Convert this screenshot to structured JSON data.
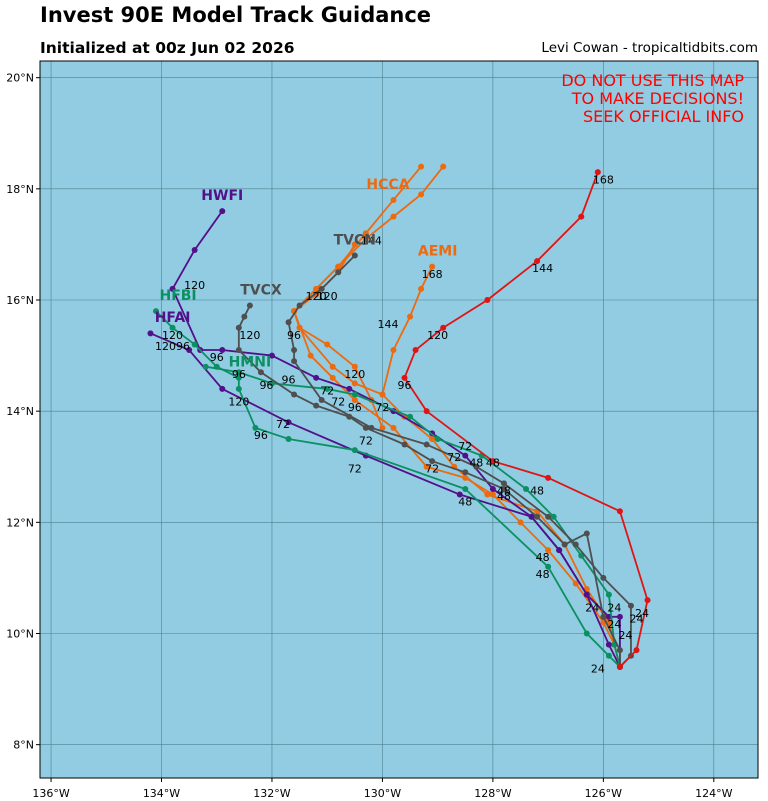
{
  "header": {
    "title": "Invest 90E Model Track Guidance",
    "subtitle": "Initialized at 00z Jun 02 2026",
    "credit": "Levi Cowan - tropicaltidbits.com"
  },
  "warning": {
    "lines": [
      "DO NOT USE THIS MAP",
      "TO MAKE DECISIONS!",
      "SEEK OFFICIAL INFO"
    ]
  },
  "colors": {
    "ocean": "#92cce2",
    "grid": "#4d7f8f",
    "AEMI": "#ec6a10",
    "HCCA": "#ec6a10",
    "HWFI": "#52108a",
    "HFAI": "#52108a",
    "HFBI": "#0c9063",
    "HMNI": "#0c9063",
    "TVCN": "#4f4f4f",
    "TVCX": "#4f4f4f",
    "CLIPER": "#e01414",
    "warning": "#ff0000"
  },
  "chart_data": {
    "type": "line",
    "xlabel": "",
    "ylabel": "",
    "xlim": [
      -136.2,
      -123.2
    ],
    "ylim": [
      7.4,
      20.3
    ],
    "x_ticks": [
      -136,
      -134,
      -132,
      -130,
      -128,
      -126,
      -124
    ],
    "x_tick_labels": [
      "136°W",
      "134°W",
      "132°W",
      "130°W",
      "128°W",
      "126°W",
      "124°W"
    ],
    "y_ticks": [
      8,
      10,
      12,
      14,
      16,
      18,
      20
    ],
    "y_tick_labels": [
      "8°N",
      "10°N",
      "12°N",
      "14°N",
      "16°N",
      "18°N",
      "20°N"
    ],
    "grid": true,
    "series": [
      {
        "name": "AEMI",
        "color_key": "AEMI",
        "lon": [
          -125.7,
          -125.8,
          -125.9,
          -126.3,
          -126.7,
          -127.2,
          -128.1,
          -128.7,
          -129.1,
          -129.6,
          -130.0,
          -130.5,
          -130.9,
          -131.5,
          -131.6,
          -131.2,
          -130.8,
          -130.5
        ],
        "lat": [
          9.4,
          9.8,
          10.2,
          10.8,
          11.6,
          12.2,
          12.5,
          13.0,
          13.5,
          13.9,
          14.3,
          14.5,
          14.8,
          15.5,
          15.8,
          16.1,
          16.5,
          17.0
        ],
        "labels": [
          {
            "text": "24",
            "i": 2
          },
          {
            "text": "48",
            "i": 6
          }
        ]
      },
      {
        "name": "AEMI_upper",
        "color_key": "AEMI",
        "lon": [
          -130.0,
          -130.2,
          -130.5,
          -131.0,
          -131.5,
          -131.6,
          -131.2,
          -130.8,
          -130.3,
          -129.8,
          -129.3,
          -128.9
        ],
        "lat": [
          13.7,
          14.2,
          14.8,
          15.2,
          15.5,
          15.8,
          16.2,
          16.6,
          17.1,
          17.5,
          17.9,
          18.4
        ],
        "labels": []
      },
      {
        "name": "HCCA",
        "color_key": "HCCA",
        "lon": [
          -125.7,
          -125.8,
          -126.0,
          -126.5,
          -127.0,
          -127.5,
          -128.0,
          -128.5,
          -129.2,
          -129.8,
          -130.5,
          -130.9,
          -131.3,
          -131.6,
          -131.2,
          -130.8,
          -130.3,
          -129.8,
          -129.3
        ],
        "lat": [
          9.4,
          9.8,
          10.2,
          10.9,
          11.5,
          12.0,
          12.5,
          12.8,
          13.0,
          13.7,
          14.2,
          14.6,
          15.0,
          15.8,
          16.2,
          16.6,
          17.2,
          17.8,
          18.4
        ],
        "labels": []
      },
      {
        "name": "AEMI_east",
        "color_key": "AEMI",
        "lon": [
          -130.0,
          -129.8,
          -129.5,
          -129.3,
          -129.1
        ],
        "lat": [
          14.3,
          15.1,
          15.7,
          16.2,
          16.6
        ],
        "labels": [
          {
            "text": "144",
            "i": 1
          },
          {
            "text": "168",
            "i": 4
          }
        ]
      },
      {
        "name": "HWFI",
        "color_key": "HWFI",
        "lon": [
          -125.7,
          -125.9,
          -126.3,
          -126.8,
          -127.3,
          -128.0,
          -128.5,
          -129.1,
          -129.8,
          -130.6,
          -131.2,
          -132.0,
          -132.9,
          -133.3,
          -133.8,
          -133.4,
          -132.9
        ],
        "lat": [
          9.4,
          9.8,
          10.7,
          11.5,
          12.1,
          12.6,
          13.2,
          13.6,
          14.0,
          14.4,
          14.6,
          15.0,
          15.1,
          15.1,
          16.2,
          16.9,
          17.6
        ],
        "labels": []
      },
      {
        "name": "HFAI",
        "color_key": "HFAI",
        "lon": [
          -125.7,
          -125.7,
          -125.9,
          -126.3,
          -126.8,
          -127.3,
          -128.6,
          -130.3,
          -131.7,
          -132.9,
          -133.5,
          -134.2
        ],
        "lat": [
          9.4,
          10.3,
          10.3,
          10.7,
          11.5,
          12.1,
          12.5,
          13.2,
          13.8,
          14.4,
          15.1,
          15.4
        ],
        "labels": []
      },
      {
        "name": "HFBI",
        "color_key": "HFBI",
        "lon": [
          -125.7,
          -125.9,
          -126.3,
          -127.0,
          -128.5,
          -130.5,
          -131.7,
          -132.3,
          -132.6,
          -132.6,
          -133.0,
          -133.4,
          -133.8,
          -134.1
        ],
        "lat": [
          9.4,
          9.6,
          10.0,
          11.2,
          12.6,
          13.3,
          13.5,
          13.7,
          14.4,
          14.6,
          14.8,
          15.2,
          15.5,
          15.8
        ],
        "labels": []
      },
      {
        "name": "HMNI",
        "color_key": "HMNI",
        "lon": [
          -125.7,
          -125.8,
          -125.9,
          -126.4,
          -126.9,
          -127.4,
          -128.2,
          -129.0,
          -129.5,
          -130.5,
          -131.0,
          -132.0,
          -132.6,
          -133.2
        ],
        "lat": [
          9.4,
          9.8,
          10.7,
          11.4,
          12.1,
          12.6,
          13.2,
          13.5,
          13.9,
          14.3,
          14.4,
          14.5,
          14.7,
          14.8
        ],
        "labels": []
      },
      {
        "name": "TVCN",
        "color_key": "TVCN",
        "lon": [
          -125.7,
          -125.5,
          -125.5,
          -126.0,
          -126.5,
          -127.0,
          -127.8,
          -128.3,
          -129.2,
          -130.2,
          -131.1,
          -131.6,
          -131.6,
          -131.7,
          -131.5,
          -131.1,
          -130.8,
          -130.5
        ],
        "lat": [
          9.4,
          9.6,
          10.5,
          11.0,
          11.6,
          12.1,
          12.7,
          13.0,
          13.4,
          13.7,
          14.2,
          14.9,
          15.1,
          15.6,
          15.9,
          16.2,
          16.5,
          16.8
        ],
        "labels": []
      },
      {
        "name": "TVCX",
        "color_key": "TVCX",
        "lon": [
          -125.7,
          -125.7,
          -126.0,
          -126.3,
          -126.7,
          -127.2,
          -127.8,
          -128.5,
          -129.1,
          -129.6,
          -130.3,
          -130.6,
          -131.2,
          -131.6,
          -132.2,
          -132.6,
          -132.6,
          -132.5,
          -132.4
        ],
        "lat": [
          9.4,
          9.7,
          10.3,
          11.8,
          11.6,
          12.1,
          12.6,
          12.9,
          13.1,
          13.4,
          13.7,
          13.9,
          14.1,
          14.3,
          14.7,
          15.1,
          15.5,
          15.7,
          15.9
        ],
        "labels": []
      },
      {
        "name": "CLIPER",
        "color_key": "CLIPER",
        "lon": [
          -125.7,
          -125.4,
          -125.2,
          -125.7,
          -127.0,
          -128.0,
          -129.2,
          -129.6,
          -129.4,
          -128.9,
          -128.1,
          -127.2,
          -126.4,
          -126.1
        ],
        "lat": [
          9.4,
          9.7,
          10.6,
          12.2,
          12.8,
          13.1,
          14.0,
          14.6,
          15.1,
          15.5,
          16.0,
          16.7,
          17.5,
          18.3
        ],
        "labels": []
      }
    ],
    "model_labels": [
      {
        "text": "HWFI",
        "lon": -132.9,
        "lat": 17.8,
        "color_key": "HWFI"
      },
      {
        "text": "HFAI",
        "lon": -133.8,
        "lat": 15.6,
        "color_key": "HFAI"
      },
      {
        "text": "HFBI",
        "lon": -133.7,
        "lat": 16.0,
        "color_key": "HFBI"
      },
      {
        "text": "HMNI",
        "lon": -132.4,
        "lat": 14.8,
        "color_key": "HMNI"
      },
      {
        "text": "TVCX",
        "lon": -132.2,
        "lat": 16.1,
        "color_key": "TVCX"
      },
      {
        "text": "TVCN",
        "lon": -130.5,
        "lat": 17.0,
        "color_key": "TVCN"
      },
      {
        "text": "HCCA",
        "lon": -129.9,
        "lat": 18.0,
        "color_key": "HCCA"
      },
      {
        "text": "AEMI",
        "lon": -129.0,
        "lat": 16.8,
        "color_key": "AEMI"
      }
    ],
    "hour_labels": [
      {
        "text": "168",
        "lon": -126.0,
        "lat": 18.1
      },
      {
        "text": "144",
        "lon": -127.1,
        "lat": 16.5
      },
      {
        "text": "120",
        "lon": -129.0,
        "lat": 15.3
      },
      {
        "text": "96",
        "lon": -129.6,
        "lat": 14.4
      },
      {
        "text": "72",
        "lon": -128.7,
        "lat": 13.1
      },
      {
        "text": "48",
        "lon": -127.2,
        "lat": 12.5
      },
      {
        "text": "24",
        "lon": -125.3,
        "lat": 10.3
      },
      {
        "text": "144",
        "lon": -130.2,
        "lat": 17.0
      },
      {
        "text": "120",
        "lon": -131.2,
        "lat": 16.0
      },
      {
        "text": "120",
        "lon": -131.0,
        "lat": 16.0
      },
      {
        "text": "144",
        "lon": -129.9,
        "lat": 15.5
      },
      {
        "text": "168",
        "lon": -129.1,
        "lat": 16.4
      },
      {
        "text": "120",
        "lon": -130.5,
        "lat": 14.6
      },
      {
        "text": "96",
        "lon": -131.6,
        "lat": 15.3
      },
      {
        "text": "96",
        "lon": -131.7,
        "lat": 14.5
      },
      {
        "text": "96",
        "lon": -130.5,
        "lat": 14.0
      },
      {
        "text": "72",
        "lon": -131.0,
        "lat": 14.3
      },
      {
        "text": "72",
        "lon": -130.8,
        "lat": 14.1
      },
      {
        "text": "72",
        "lon": -130.0,
        "lat": 14.0
      },
      {
        "text": "72",
        "lon": -130.3,
        "lat": 13.4
      },
      {
        "text": "72",
        "lon": -130.5,
        "lat": 12.9
      },
      {
        "text": "72",
        "lon": -129.1,
        "lat": 12.9
      },
      {
        "text": "72",
        "lon": -128.5,
        "lat": 13.3
      },
      {
        "text": "72",
        "lon": -131.8,
        "lat": 13.7
      },
      {
        "text": "120",
        "lon": -132.4,
        "lat": 15.3
      },
      {
        "text": "120",
        "lon": -133.8,
        "lat": 15.3
      },
      {
        "text": "120",
        "lon": -132.6,
        "lat": 14.1
      },
      {
        "text": "120",
        "lon": -133.4,
        "lat": 16.2
      },
      {
        "text": "12096",
        "lon": -133.8,
        "lat": 15.1
      },
      {
        "text": "96",
        "lon": -133.0,
        "lat": 14.9
      },
      {
        "text": "96",
        "lon": -132.6,
        "lat": 14.6
      },
      {
        "text": "96",
        "lon": -132.1,
        "lat": 14.4
      },
      {
        "text": "96",
        "lon": -132.2,
        "lat": 13.5
      },
      {
        "text": "48",
        "lon": -128.5,
        "lat": 12.3
      },
      {
        "text": "48",
        "lon": -128.3,
        "lat": 13.0
      },
      {
        "text": "48",
        "lon": -128.0,
        "lat": 13.0
      },
      {
        "text": "48",
        "lon": -127.8,
        "lat": 12.5
      },
      {
        "text": "48",
        "lon": -127.8,
        "lat": 12.4
      },
      {
        "text": "48",
        "lon": -127.1,
        "lat": 11.3
      },
      {
        "text": "48",
        "lon": -127.1,
        "lat": 11.0
      },
      {
        "text": "24",
        "lon": -126.2,
        "lat": 10.4
      },
      {
        "text": "24",
        "lon": -125.8,
        "lat": 10.4
      },
      {
        "text": "24",
        "lon": -125.8,
        "lat": 10.1
      },
      {
        "text": "24",
        "lon": -125.4,
        "lat": 10.2
      },
      {
        "text": "24",
        "lon": -125.6,
        "lat": 9.9
      },
      {
        "text": "24",
        "lon": -126.1,
        "lat": 9.3
      }
    ]
  }
}
